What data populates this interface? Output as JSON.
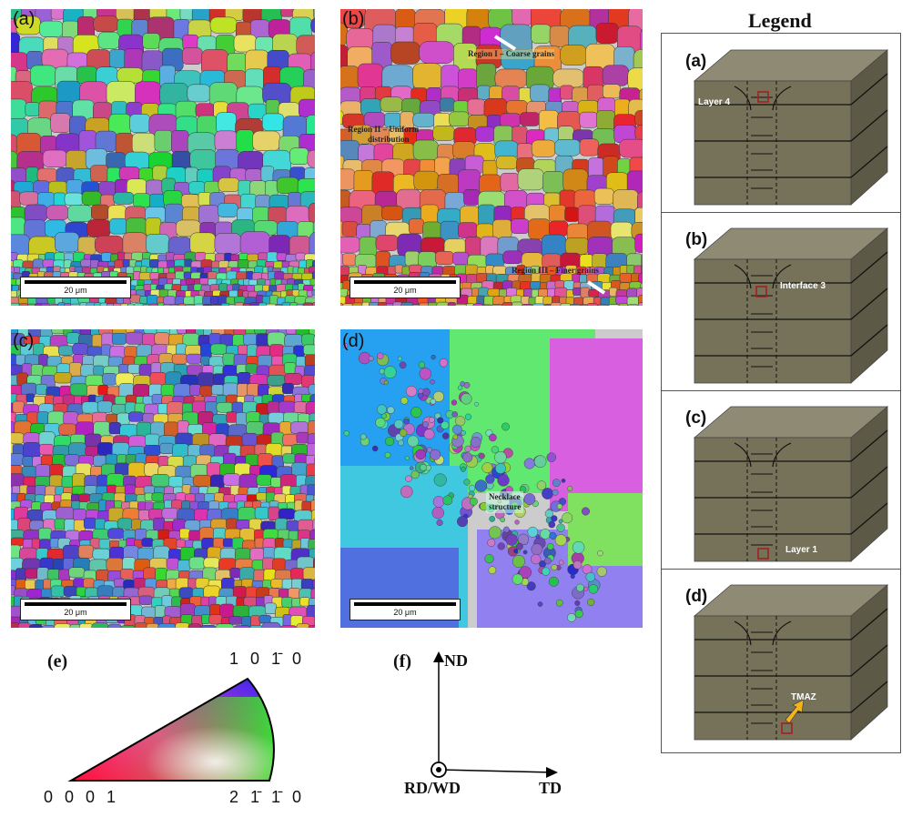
{
  "panels": [
    {
      "label": "(a)",
      "scale": "20 μm",
      "palette": "mixed-cool"
    },
    {
      "label": "(b)",
      "scale": "20 μm",
      "palette": "warm"
    },
    {
      "label": "(c)",
      "scale": "20 μm",
      "palette": "mixed"
    },
    {
      "label": "(d)",
      "scale": "20 μm",
      "palette": "tmaz"
    }
  ],
  "annotations": {
    "region1": "Region I – Coarse grains",
    "region2_line1": "Region II – Uniform",
    "region2_line2": "distribution",
    "region3": "Region III – Finer grains",
    "necklace_line1": "Necklace",
    "necklace_line2": "structure"
  },
  "legend": {
    "title": "Legend",
    "items": [
      {
        "label": "(a)",
        "marker": "Layer 4"
      },
      {
        "label": "(b)",
        "marker": "Interface 3"
      },
      {
        "label": "(c)",
        "marker": "Layer 1"
      },
      {
        "label": "(d)",
        "marker": "TMAZ"
      }
    ]
  },
  "ipf": {
    "label": "(e)",
    "top_corner": "1 0 1̄ 0",
    "left_corner": "0 0 0 1",
    "right_corner": "2 1̄ 1̄ 0"
  },
  "axes": {
    "label": "(f)",
    "nd": "ND",
    "td": "TD",
    "rd": "RD/WD"
  },
  "colors": {
    "block_top": "#8f8a74",
    "block_front": "#767259",
    "block_side": "#5c5a46",
    "marker": "#a02020",
    "arrow": "#f2b418"
  }
}
